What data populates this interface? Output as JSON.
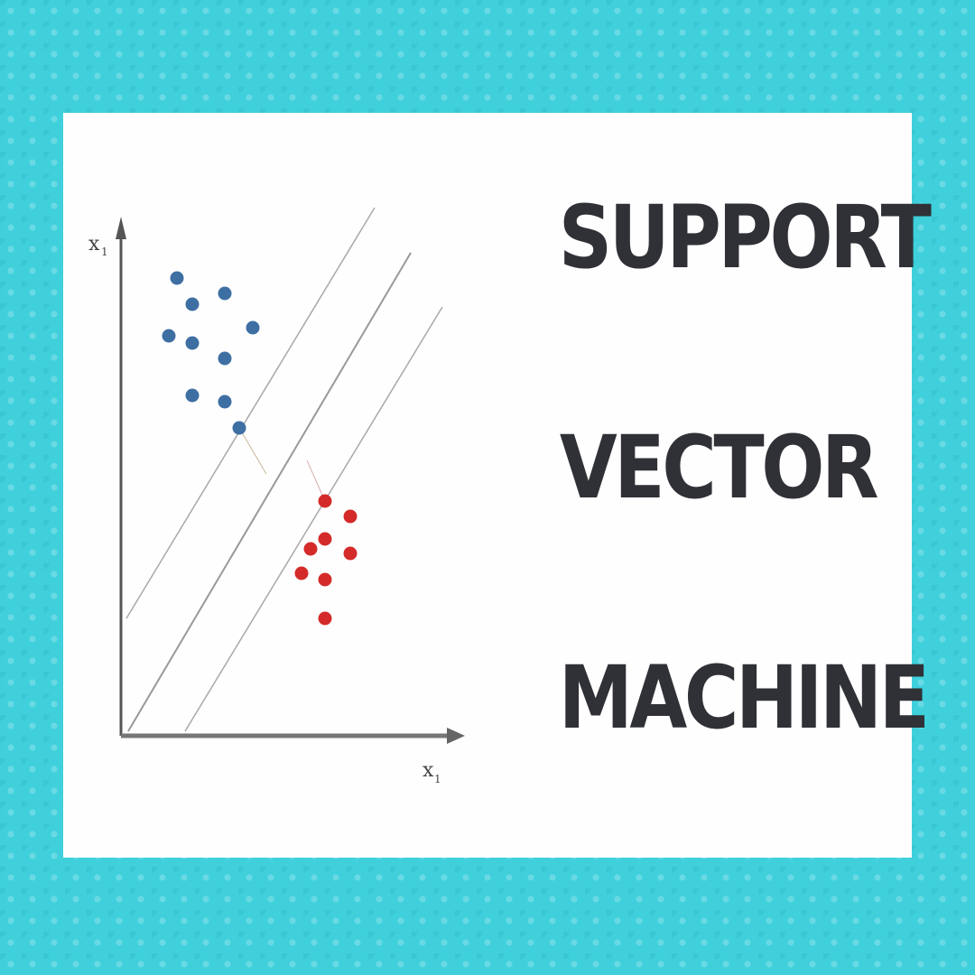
{
  "title": {
    "line1": "SUPPORT",
    "line2": "VECTOR",
    "line3": "MACHINE"
  },
  "axes": {
    "y_label": "x",
    "y_sub": "1",
    "x_label": "x",
    "x_sub": "1"
  },
  "colors": {
    "background": "#3fd0dc",
    "card": "#fefefe",
    "title": "#2f3136",
    "blue_points": "#3e6fa3",
    "red_points": "#d42a2a",
    "axis": "#555555",
    "lines": "#9a9a9a"
  }
}
